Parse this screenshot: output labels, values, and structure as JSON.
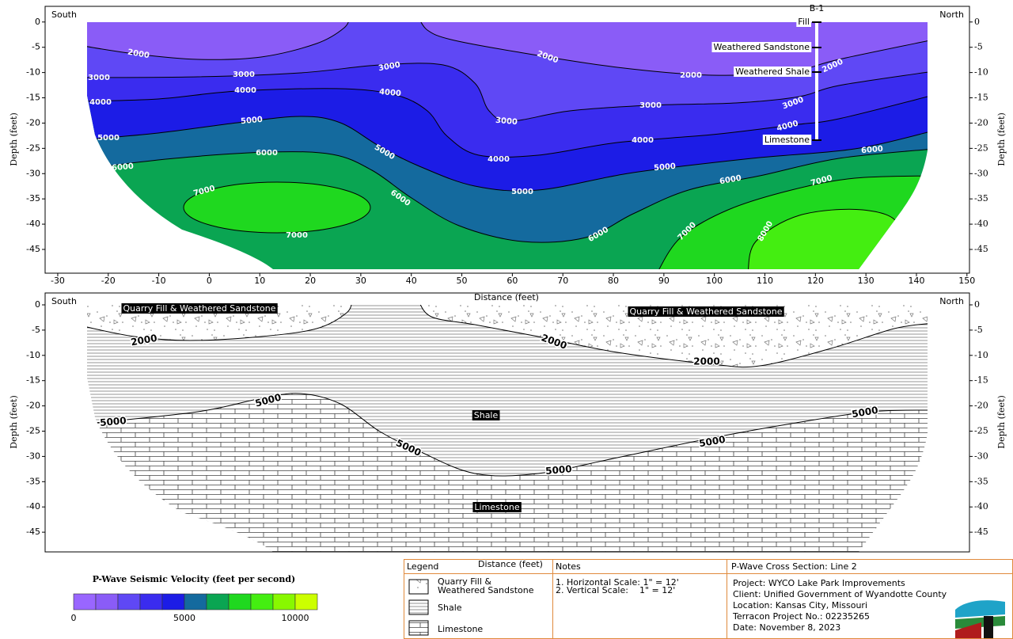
{
  "axes": {
    "x_label": "Distance (feet)",
    "y_label": "Depth (feet)",
    "xlim": [
      -32.5,
      150.5
    ],
    "x_ticks": [
      -30,
      -20,
      -10,
      0,
      10,
      20,
      30,
      40,
      50,
      60,
      70,
      80,
      90,
      100,
      110,
      120,
      130,
      140,
      150
    ],
    "y_ticks": [
      0,
      -5,
      -10,
      -15,
      -20,
      -25,
      -30,
      -35,
      -40,
      -45
    ]
  },
  "top_panel": {
    "ylim": [
      -49.7,
      3.1
    ],
    "left_label": "South",
    "right_label": "North",
    "boring": {
      "name": "B-1",
      "layers": [
        "Fill",
        "Weathered Sandstone",
        "Weathered Shale",
        "Limestone"
      ]
    },
    "contours": [
      2000,
      3000,
      4000,
      5000,
      6000,
      7000,
      8000
    ]
  },
  "bottom_panel": {
    "ylim": [
      -48.9,
      2.35
    ],
    "left_label": "South",
    "right_label": "North",
    "zones": [
      "Quarry Fill & Weathered Sandstone",
      "Shale",
      "Limestone"
    ],
    "contours": [
      2000,
      5000
    ]
  },
  "colorbar": {
    "title": "P-Wave Seismic Velocity (feet per second)",
    "range": [
      0,
      11000
    ],
    "ticks": [
      0,
      5000,
      10000
    ],
    "colors": [
      "#9966ff",
      "#8a5cf7",
      "#5f48f5",
      "#3a2cef",
      "#1c1ce6",
      "#146a9e",
      "#0aa552",
      "#1fd81f",
      "#44ee11",
      "#88f800",
      "#ccff00"
    ]
  },
  "legend": {
    "title": "Legend",
    "items": [
      [
        "Quarry Fill &",
        "Weathered Sandstone"
      ],
      [
        "Shale"
      ],
      [
        "Limestone"
      ]
    ]
  },
  "notes": {
    "title": "Notes",
    "lines": [
      "1. Horizontal Scale: 1\" = 12'",
      "2. Vertical Scale:    1\" = 12'"
    ]
  },
  "title_block": {
    "title": "P-Wave Cross Section: Line 2",
    "lines": [
      "Project: WYCO Lake Park Improvements",
      "Client: Unified Government of Wyandotte County",
      "Location: Kansas City, Missouri",
      "Terracon Project No.: 02235265",
      "Date: November 8, 2023"
    ]
  }
}
